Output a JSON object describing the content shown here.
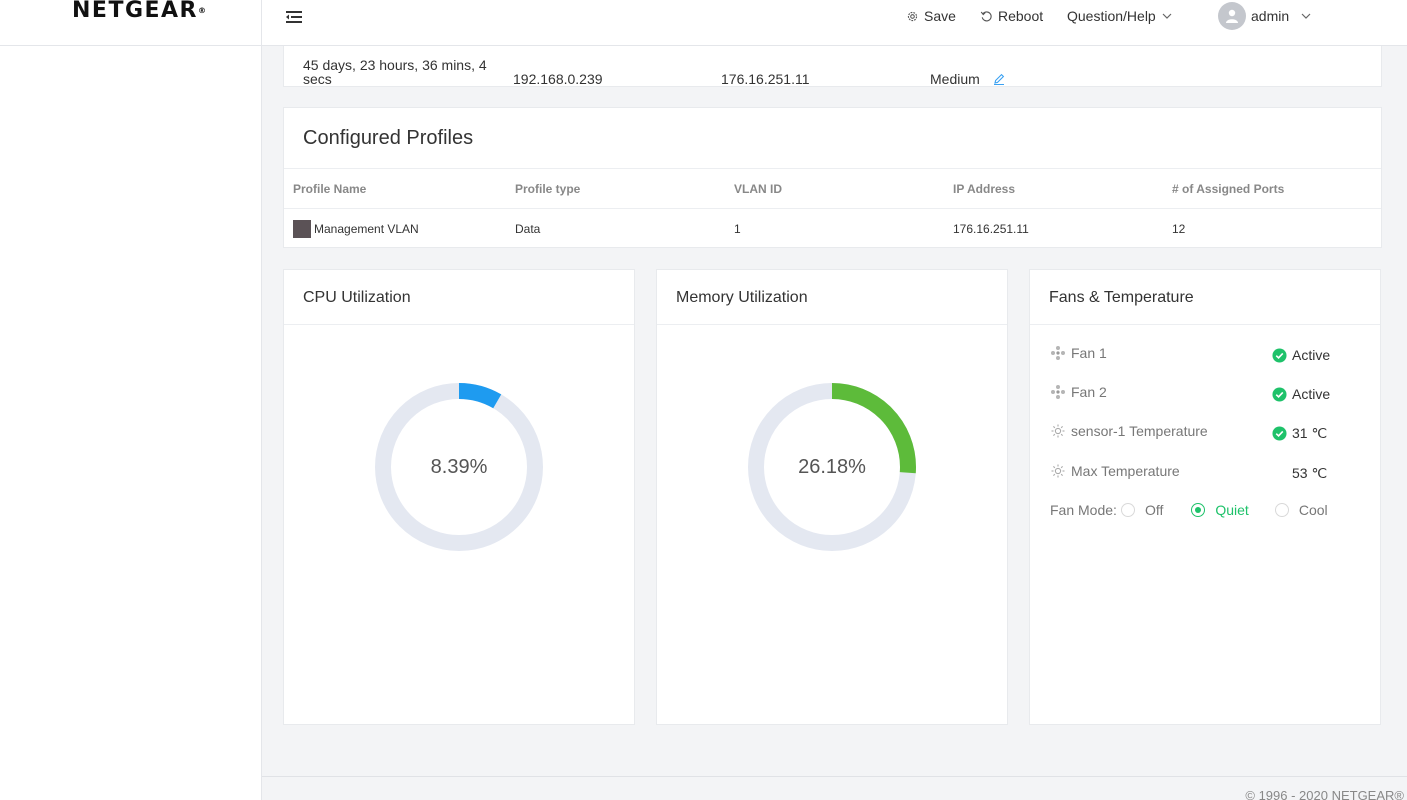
{
  "brand": {
    "logo": "NETGEAR"
  },
  "header": {
    "save_label": "Save",
    "reboot_label": "Reboot",
    "help_label": "Question/Help",
    "user_label": "admin"
  },
  "system_info": {
    "uptime_partial": "45 days, 23 hours, 36 mins, 4",
    "uptime_tail": "secs",
    "ip_address": "192.168.0.239",
    "mgmt_ip": "176.16.251.11",
    "level": "Medium"
  },
  "profiles": {
    "title": "Configured Profiles",
    "columns": [
      "Profile Name",
      "Profile type",
      "VLAN ID",
      "IP Address",
      "# of Assigned Ports"
    ],
    "rows": [
      {
        "name": "Management VLAN",
        "type": "Data",
        "vlan_id": "1",
        "ip": "176.16.251.11",
        "ports": "12",
        "color": "#5b5256"
      }
    ]
  },
  "cpu": {
    "title": "CPU Utilization",
    "value_label": "8.39%",
    "percent": 8.39,
    "color": "#1e9bf0"
  },
  "memory": {
    "title": "Memory Utilization",
    "value_label": "26.18%",
    "percent": 26.18,
    "color": "#5dbb3a"
  },
  "fans": {
    "title": "Fans & Temperature",
    "items": [
      {
        "name": "Fan 1",
        "status": "Active",
        "icon": "fan-icon"
      },
      {
        "name": "Fan 2",
        "status": "Active",
        "icon": "fan-icon"
      },
      {
        "name": "sensor-1 Temperature",
        "status": "31 ℃",
        "icon": "sun-icon"
      },
      {
        "name": "Max Temperature",
        "status": "53 ℃",
        "icon": "sun-icon"
      }
    ],
    "mode_label": "Fan Mode:",
    "modes": [
      "Off",
      "Quiet",
      "Cool"
    ],
    "selected_mode": "Quiet",
    "ok_color": "#1ec26a"
  },
  "footer": {
    "copyright": "© 1996 - 2020 NETGEAR®"
  }
}
